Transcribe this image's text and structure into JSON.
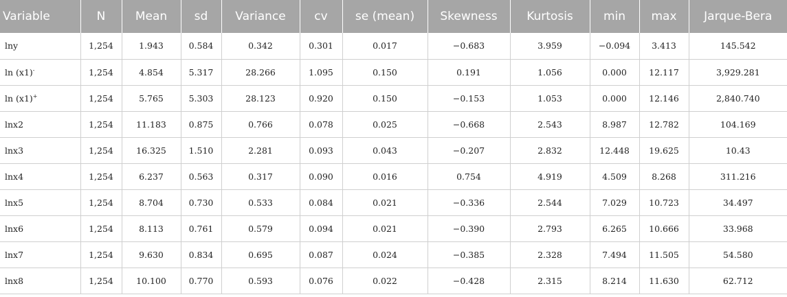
{
  "table": {
    "headers": [
      "Variable",
      "N",
      "Mean",
      "sd",
      "Variance",
      "cv",
      "se (mean)",
      "Skewness",
      "Kurtosis",
      "min",
      "max",
      "Jarque-Bera"
    ],
    "rows": [
      {
        "variable": "lny",
        "sup": "",
        "cells": [
          "1,254",
          "1.943",
          "0.584",
          "0.342",
          "0.301",
          "0.017",
          "−0.683",
          "3.959",
          "−0.094",
          "3.413",
          "145.542"
        ]
      },
      {
        "variable": "ln (x1)",
        "sup": "-",
        "cells": [
          "1,254",
          "4.854",
          "5.317",
          "28.266",
          "1.095",
          "0.150",
          "0.191",
          "1.056",
          "0.000",
          "12.117",
          "3,929.281"
        ]
      },
      {
        "variable": "ln (x1)",
        "sup": "+",
        "cells": [
          "1,254",
          "5.765",
          "5.303",
          "28.123",
          "0.920",
          "0.150",
          "−0.153",
          "1.053",
          "0.000",
          "12.146",
          "2,840.740"
        ]
      },
      {
        "variable": "lnx2",
        "sup": "",
        "cells": [
          "1,254",
          "11.183",
          "0.875",
          "0.766",
          "0.078",
          "0.025",
          "−0.668",
          "2.543",
          "8.987",
          "12.782",
          "104.169"
        ]
      },
      {
        "variable": "lnx3",
        "sup": "",
        "cells": [
          "1,254",
          "16.325",
          "1.510",
          "2.281",
          "0.093",
          "0.043",
          "−0.207",
          "2.832",
          "12.448",
          "19.625",
          "10.43"
        ]
      },
      {
        "variable": "lnx4",
        "sup": "",
        "cells": [
          "1,254",
          "6.237",
          "0.563",
          "0.317",
          "0.090",
          "0.016",
          "0.754",
          "4.919",
          "4.509",
          "8.268",
          "311.216"
        ]
      },
      {
        "variable": "lnx5",
        "sup": "",
        "cells": [
          "1,254",
          "8.704",
          "0.730",
          "0.533",
          "0.084",
          "0.021",
          "−0.336",
          "2.544",
          "7.029",
          "10.723",
          "34.497"
        ]
      },
      {
        "variable": "lnx6",
        "sup": "",
        "cells": [
          "1,254",
          "8.113",
          "0.761",
          "0.579",
          "0.094",
          "0.021",
          "−0.390",
          "2.793",
          "6.265",
          "10.666",
          "33.968"
        ]
      },
      {
        "variable": "lnx7",
        "sup": "",
        "cells": [
          "1,254",
          "9.630",
          "0.834",
          "0.695",
          "0.087",
          "0.024",
          "−0.385",
          "2.328",
          "7.494",
          "11.505",
          "54.580"
        ]
      },
      {
        "variable": "lnx8",
        "sup": "",
        "cells": [
          "1,254",
          "10.100",
          "0.770",
          "0.593",
          "0.076",
          "0.022",
          "−0.428",
          "2.315",
          "8.214",
          "11.630",
          "62.712"
        ]
      }
    ]
  }
}
